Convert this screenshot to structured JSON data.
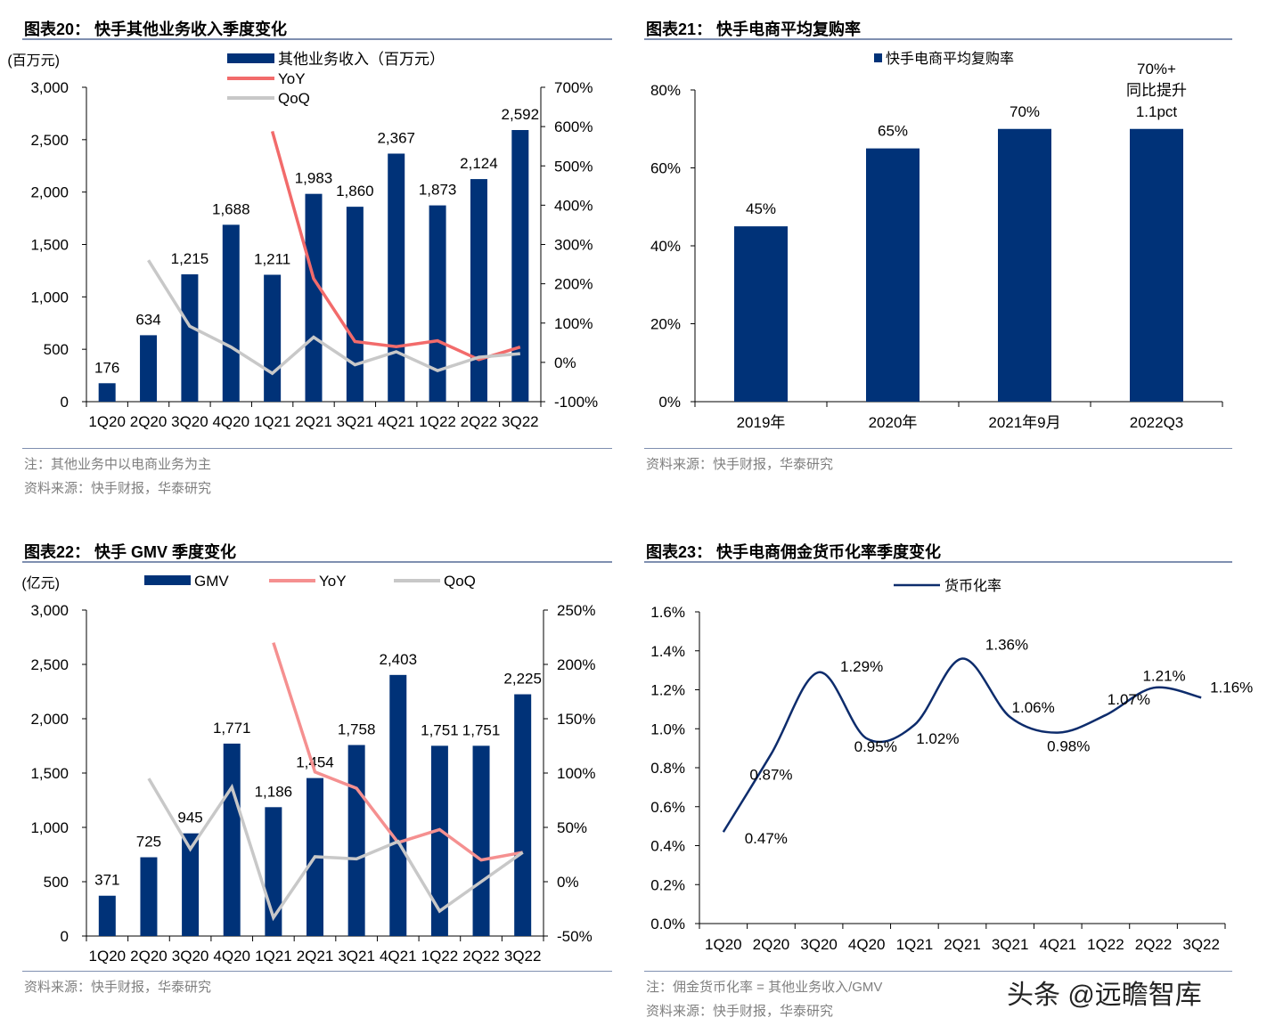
{
  "colors": {
    "bar": "#003278",
    "yoy": "#f26b6b",
    "yoy_light": "#f59090",
    "qoq": "#c8c8c8",
    "line": "#0d2c6c"
  },
  "watermark": "头条 @远瞻智库",
  "chart_data": [
    {
      "id": "c20",
      "type": "bar+line",
      "title": "图表20：  快手其他业务收入季度变化",
      "unit": "(百万元)",
      "categories": [
        "1Q20",
        "2Q20",
        "3Q20",
        "4Q20",
        "1Q21",
        "2Q21",
        "3Q21",
        "4Q21",
        "1Q22",
        "2Q22",
        "3Q22"
      ],
      "category_labels": [
        "1Q20",
        "2Q20",
        "3Q20",
        "4Q20",
        "1Q21",
        "2Q21",
        "3Q21",
        "4Q21",
        "1Q22",
        "2Q22",
        "3Q22"
      ],
      "ylim": [
        0,
        3000
      ],
      "yticks": [
        "0",
        "500",
        "1,000",
        "1,500",
        "2,000",
        "2,500",
        "3,000"
      ],
      "y2lim": [
        -100,
        700
      ],
      "y2ticks": [
        "-100%",
        "0%",
        "100%",
        "200%",
        "300%",
        "400%",
        "500%",
        "600%",
        "700%"
      ],
      "bars": {
        "name": "其他业务收入（百万元）",
        "values": [
          176,
          634,
          1215,
          1688,
          1211,
          1983,
          1860,
          2367,
          1873,
          2124,
          2592
        ],
        "labels": [
          "176",
          "634",
          "1,215",
          "1,688",
          "1,211",
          "1,983",
          "1,860",
          "2,367",
          "1,873",
          "2,124",
          "2,592"
        ]
      },
      "series": [
        {
          "name": "YoY",
          "values": [
            null,
            null,
            null,
            null,
            588,
            213,
            53,
            40,
            55,
            7,
            39
          ]
        },
        {
          "name": "QoQ",
          "values": [
            null,
            260,
            92,
            39,
            -28,
            64,
            -6,
            27,
            -21,
            13,
            22
          ]
        }
      ],
      "legend": "top-center, stacked",
      "note": "注：其他业务中以电商业务为主",
      "source": "资料来源：快手财报，华泰研究"
    },
    {
      "id": "c21",
      "type": "bar",
      "title": "图表21：  快手电商平均复购率",
      "categories": [
        "2019年",
        "2020年",
        "2021年9月",
        "2022Q3"
      ],
      "values": [
        45,
        65,
        70,
        70
      ],
      "labels": [
        "45%",
        "65%",
        "70%",
        "70%+\n同比提升\n1.1pct"
      ],
      "ylim": [
        0,
        80
      ],
      "yticks": [
        "0%",
        "20%",
        "40%",
        "60%",
        "80%"
      ],
      "legend_name": "快手电商平均复购率",
      "legend": "top-center",
      "source": "资料来源：快手财报，华泰研究"
    },
    {
      "id": "c22",
      "type": "bar+line",
      "title": "图表22：  快手 GMV 季度变化",
      "unit": "(亿元)",
      "categories": [
        "1Q20",
        "2Q20",
        "3Q20",
        "4Q20",
        "1Q21",
        "2Q21",
        "3Q21",
        "4Q21",
        "1Q22",
        "2Q22",
        "3Q22"
      ],
      "ylim": [
        0,
        3000
      ],
      "yticks": [
        "0",
        "500",
        "1,000",
        "1,500",
        "2,000",
        "2,500",
        "3,000"
      ],
      "y2lim": [
        -50,
        250
      ],
      "y2ticks": [
        "-50%",
        "0%",
        "50%",
        "100%",
        "150%",
        "200%",
        "250%"
      ],
      "bars": {
        "name": "GMV",
        "values": [
          371,
          725,
          945,
          1771,
          1186,
          1454,
          1758,
          2403,
          1751,
          1751,
          2225
        ],
        "labels": [
          "371",
          "725",
          "945",
          "1,771",
          "1,186",
          "1,454",
          "1,758",
          "2,403",
          "1,751",
          "1,751",
          "2,225"
        ]
      },
      "series": [
        {
          "name": "YoY",
          "values": [
            null,
            null,
            null,
            null,
            220,
            101,
            86,
            36,
            48,
            20,
            27
          ]
        },
        {
          "name": "QoQ",
          "values": [
            null,
            95,
            30,
            87,
            -33,
            23,
            21,
            37,
            -27,
            0,
            27
          ]
        }
      ],
      "legend": "top, horizontal",
      "source": "资料来源：快手财报，华泰研究"
    },
    {
      "id": "c23",
      "type": "line",
      "title": "图表23：  快手电商佣金货币化率季度变化",
      "categories": [
        "1Q20",
        "2Q20",
        "3Q20",
        "4Q20",
        "1Q21",
        "2Q21",
        "3Q21",
        "4Q21",
        "1Q22",
        "2Q22",
        "3Q22"
      ],
      "series": [
        {
          "name": "货币化率",
          "values": [
            0.47,
            0.87,
            1.29,
            0.95,
            1.02,
            1.36,
            1.06,
            0.98,
            1.07,
            1.21,
            1.16
          ],
          "labels": [
            "0.47%",
            "0.87%",
            "1.29%",
            "0.95%",
            "1.02%",
            "1.36%",
            "1.06%",
            "0.98%",
            "1.07%",
            "1.21%",
            "1.16%"
          ]
        }
      ],
      "ylim": [
        0,
        1.6
      ],
      "yticks": [
        "0.0%",
        "0.2%",
        "0.4%",
        "0.6%",
        "0.8%",
        "1.0%",
        "1.2%",
        "1.4%",
        "1.6%"
      ],
      "smooth": true,
      "legend": "top-center",
      "note": "注：佣金货币化率 = 其他业务收入/GMV",
      "source": "资料来源：快手财报，华泰研究"
    }
  ]
}
